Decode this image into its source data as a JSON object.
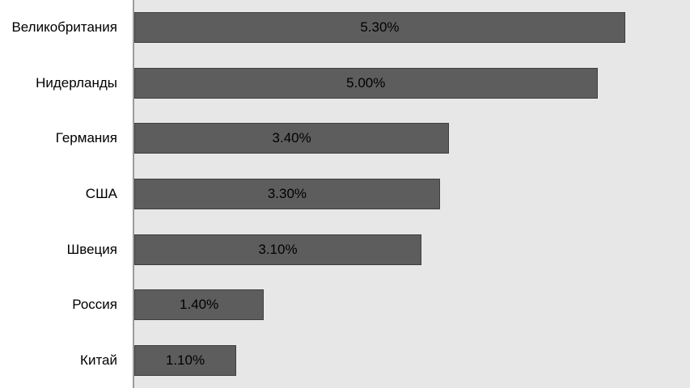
{
  "chart_data": {
    "type": "bar",
    "orientation": "horizontal",
    "title": "",
    "xlabel": "",
    "ylabel": "",
    "categories": [
      "Великобритания",
      "Нидерланды",
      "Германия",
      "США",
      "Швеция",
      "Россия",
      "Китай"
    ],
    "values": [
      5.3,
      5.0,
      3.4,
      3.3,
      3.1,
      1.4,
      1.1
    ],
    "value_labels": [
      "5.30%",
      "5.00%",
      "3.40%",
      "3.30%",
      "3.10%",
      "1.40%",
      "1.10%"
    ],
    "xlim": [
      0,
      6
    ],
    "grid": false,
    "legend": false,
    "value_label_position": "center",
    "colors": {
      "bar_fill": "#5d5d5d",
      "bar_border": "#3f3f3f",
      "plot_background": "#e7e7e7",
      "axis_line": "#9b9b9b",
      "text": "#000000",
      "label_area_background": "#ffffff"
    }
  }
}
